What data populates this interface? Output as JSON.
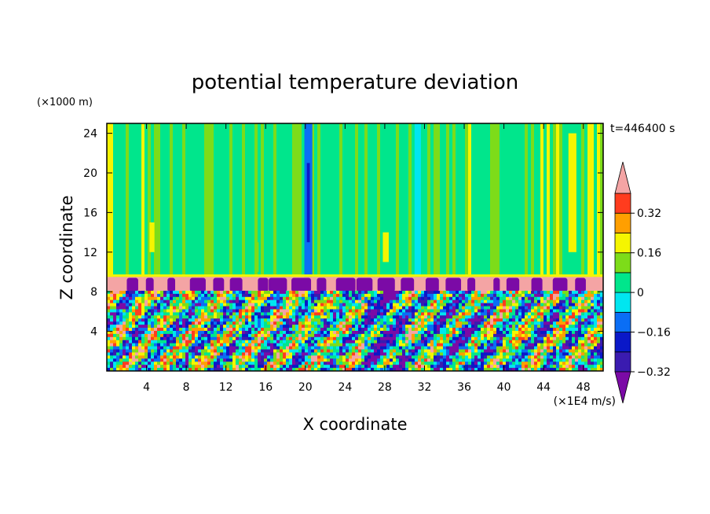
{
  "chart_data": {
    "type": "heatmap",
    "title": "potential temperature deviation",
    "xlabel": "X coordinate",
    "ylabel": "Z coordinate",
    "x_unit": "(×1E4 m/s)",
    "y_unit": "(×1000 m)",
    "time_label": "t=446400 s",
    "xlim": [
      0,
      50
    ],
    "ylim": [
      0,
      25
    ],
    "x_ticks": [
      "4",
      "8",
      "12",
      "16",
      "20",
      "24",
      "28",
      "32",
      "36",
      "40",
      "44",
      "48"
    ],
    "y_ticks": [
      "4",
      "8",
      "12",
      "16",
      "20",
      "24"
    ],
    "colorbar": {
      "labels": [
        "0.32",
        "0.16",
        "0",
        "−0.16",
        "−0.32"
      ],
      "label_values": [
        0.32,
        0.16,
        0,
        -0.16,
        -0.32
      ],
      "levels": [
        -0.4,
        -0.32,
        -0.24,
        -0.16,
        -0.08,
        0,
        0.08,
        0.16,
        0.24,
        0.32,
        0.4
      ],
      "colors": [
        "#7b0aa6",
        "#3a1bb0",
        "#0a18c8",
        "#0a6ef5",
        "#00e6f0",
        "#00e68c",
        "#7ddc19",
        "#f5f500",
        "#ff9f00",
        "#ff3c1e",
        "#f4a4a4"
      ],
      "extend": "both"
    },
    "layers": [
      {
        "z_range": [
          9.5,
          25
        ],
        "dominant": "0 to +0.08 (green), strips of +0.08 to +0.16, narrow negative plumes near x≈20 and x≈31"
      },
      {
        "z_range": [
          8.1,
          9.5
        ],
        "dominant": "> +0.4 (pink band) with < −0.4 (purple) patches at its base"
      },
      {
        "z_range": [
          0,
          8.1
        ],
        "dominant": "turbulent mixing, values spanning −0.4 to +0.4"
      }
    ]
  }
}
